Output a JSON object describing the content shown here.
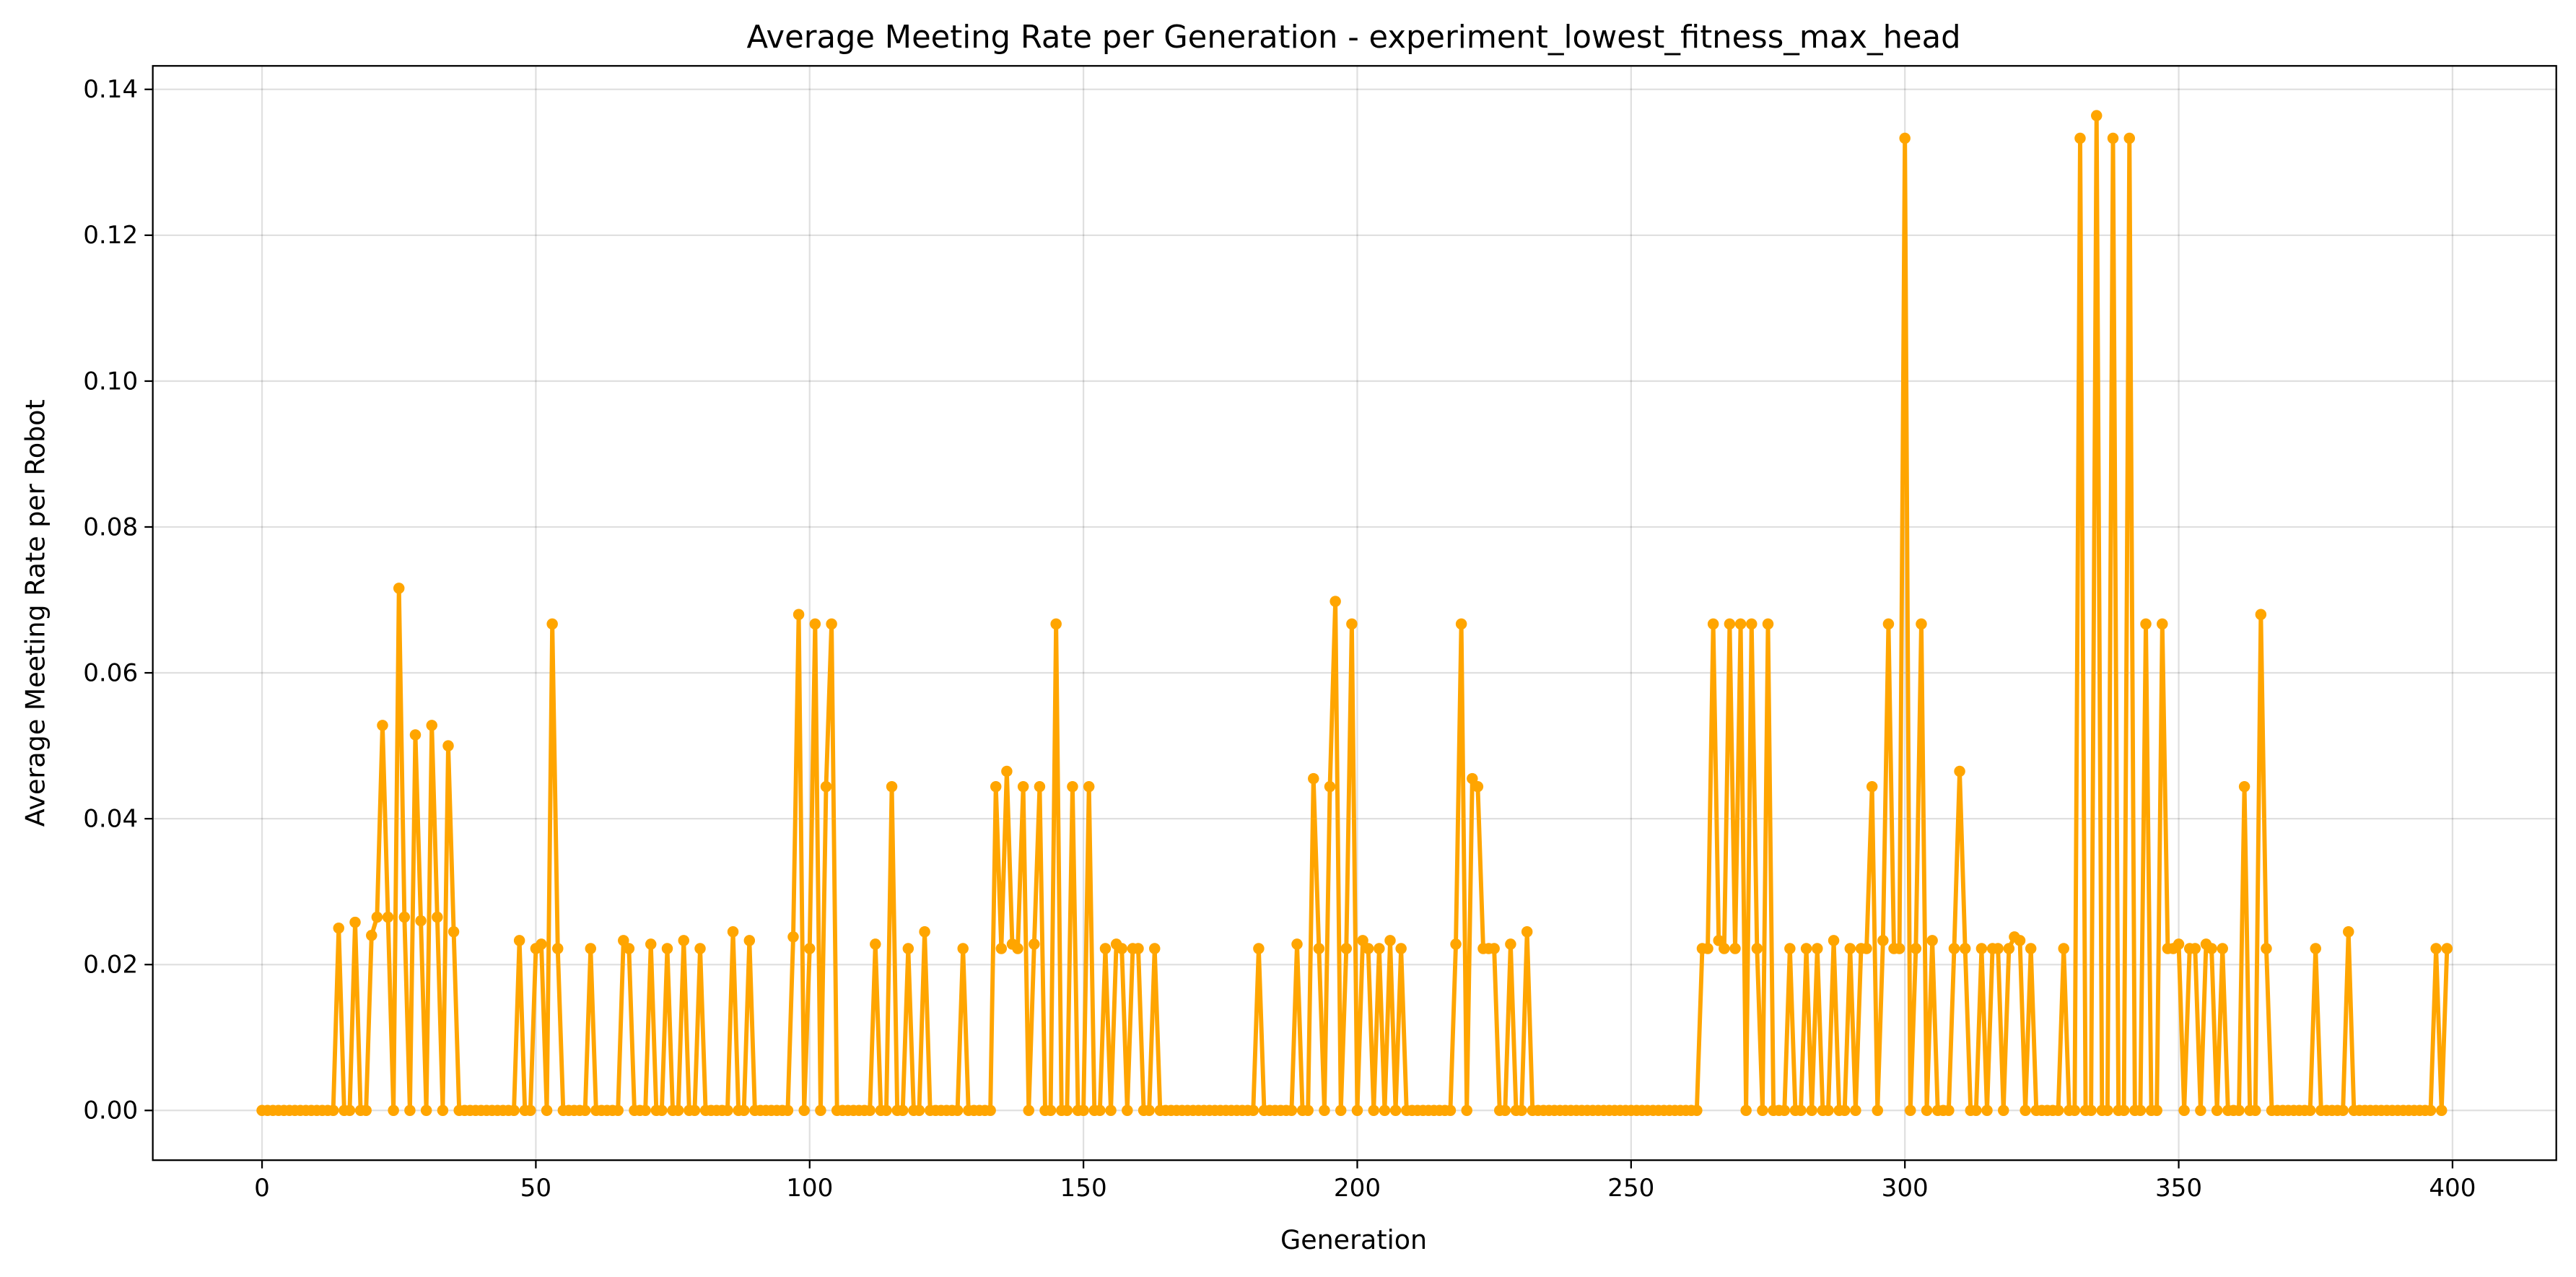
{
  "chart_data": {
    "type": "line",
    "title": "Average Meeting Rate per Generation - experiment_lowest_fitness_max_head",
    "xlabel": "Generation",
    "ylabel": "Average Meeting Rate per Robot",
    "color": "#ffa500",
    "grid": true,
    "xlim": [
      -19.95,
      418.95
    ],
    "ylim": [
      -0.00682,
      0.14322
    ],
    "xticks": [
      0,
      50,
      100,
      150,
      200,
      250,
      300,
      350,
      400
    ],
    "yticks": [
      {
        "value": 0,
        "label": "0.00"
      },
      {
        "value": 0.02,
        "label": "0.02"
      },
      {
        "value": 0.04,
        "label": "0.04"
      },
      {
        "value": 0.06,
        "label": "0.06"
      },
      {
        "value": 0.08,
        "label": "0.08"
      },
      {
        "value": 0.1,
        "label": "0.10"
      },
      {
        "value": 0.12,
        "label": "0.12"
      },
      {
        "value": 0.14,
        "label": "0.14"
      }
    ],
    "x": [
      0,
      1,
      2,
      3,
      4,
      5,
      6,
      7,
      8,
      9,
      10,
      11,
      12,
      13,
      14,
      15,
      16,
      17,
      18,
      19,
      20,
      21,
      22,
      23,
      24,
      25,
      26,
      27,
      28,
      29,
      30,
      31,
      32,
      33,
      34,
      35,
      36,
      37,
      38,
      39,
      40,
      41,
      42,
      43,
      44,
      45,
      46,
      47,
      48,
      49,
      50,
      51,
      52,
      53,
      54,
      55,
      56,
      57,
      58,
      59,
      60,
      61,
      62,
      63,
      64,
      65,
      66,
      67,
      68,
      69,
      70,
      71,
      72,
      73,
      74,
      75,
      76,
      77,
      78,
      79,
      80,
      81,
      82,
      83,
      84,
      85,
      86,
      87,
      88,
      89,
      90,
      91,
      92,
      93,
      94,
      95,
      96,
      97,
      98,
      99,
      100,
      101,
      102,
      103,
      104,
      105,
      106,
      107,
      108,
      109,
      110,
      111,
      112,
      113,
      114,
      115,
      116,
      117,
      118,
      119,
      120,
      121,
      122,
      123,
      124,
      125,
      126,
      127,
      128,
      129,
      130,
      131,
      132,
      133,
      134,
      135,
      136,
      137,
      138,
      139,
      140,
      141,
      142,
      143,
      144,
      145,
      146,
      147,
      148,
      149,
      150,
      151,
      152,
      153,
      154,
      155,
      156,
      157,
      158,
      159,
      160,
      161,
      162,
      163,
      164,
      165,
      166,
      167,
      168,
      169,
      170,
      171,
      172,
      173,
      174,
      175,
      176,
      177,
      178,
      179,
      180,
      181,
      182,
      183,
      184,
      185,
      186,
      187,
      188,
      189,
      190,
      191,
      192,
      193,
      194,
      195,
      196,
      197,
      198,
      199,
      200,
      201,
      202,
      203,
      204,
      205,
      206,
      207,
      208,
      209,
      210,
      211,
      212,
      213,
      214,
      215,
      216,
      217,
      218,
      219,
      220,
      221,
      222,
      223,
      224,
      225,
      226,
      227,
      228,
      229,
      230,
      231,
      232,
      233,
      234,
      235,
      236,
      237,
      238,
      239,
      240,
      241,
      242,
      243,
      244,
      245,
      246,
      247,
      248,
      249,
      250,
      251,
      252,
      253,
      254,
      255,
      256,
      257,
      258,
      259,
      260,
      261,
      262,
      263,
      264,
      265,
      266,
      267,
      268,
      269,
      270,
      271,
      272,
      273,
      274,
      275,
      276,
      277,
      278,
      279,
      280,
      281,
      282,
      283,
      284,
      285,
      286,
      287,
      288,
      289,
      290,
      291,
      292,
      293,
      294,
      295,
      296,
      297,
      298,
      299,
      300,
      301,
      302,
      303,
      304,
      305,
      306,
      307,
      308,
      309,
      310,
      311,
      312,
      313,
      314,
      315,
      316,
      317,
      318,
      319,
      320,
      321,
      322,
      323,
      324,
      325,
      326,
      327,
      328,
      329,
      330,
      331,
      332,
      333,
      334,
      335,
      336,
      337,
      338,
      339,
      340,
      341,
      342,
      343,
      344,
      345,
      346,
      347,
      348,
      349,
      350,
      351,
      352,
      353,
      354,
      355,
      356,
      357,
      358,
      359,
      360,
      361,
      362,
      363,
      364,
      365,
      366,
      367,
      368,
      369,
      370,
      371,
      372,
      373,
      374,
      375,
      376,
      377,
      378,
      379,
      380,
      381,
      382,
      383,
      384,
      385,
      386,
      387,
      388,
      389,
      390,
      391,
      392,
      393,
      394,
      395,
      396,
      397,
      398,
      399
    ],
    "values": [
      0,
      0,
      0,
      0,
      0,
      0,
      0,
      0,
      0,
      0,
      0,
      0,
      0,
      0,
      0.025,
      0,
      0,
      0.0258,
      0,
      0,
      0.024,
      0.0265,
      0.0528,
      0.0265,
      0,
      0.0716,
      0.0265,
      0,
      0.0515,
      0.026,
      0,
      0.0528,
      0.0265,
      0,
      0.05,
      0.0245,
      0,
      0,
      0,
      0,
      0,
      0,
      0,
      0,
      0,
      0,
      0,
      0.0233,
      0,
      0,
      0.0222,
      0.0228,
      0,
      0.0667,
      0.0222,
      0,
      0,
      0,
      0,
      0,
      0.0222,
      0,
      0,
      0,
      0,
      0,
      0.0233,
      0.0222,
      0,
      0,
      0,
      0.0228,
      0,
      0,
      0.0222,
      0,
      0,
      0.0233,
      0,
      0,
      0.0222,
      0,
      0,
      0,
      0,
      0,
      0.0245,
      0,
      0,
      0.0233,
      0,
      0,
      0,
      0,
      0,
      0,
      0,
      0.0238,
      0.068,
      0,
      0.0222,
      0.0667,
      0,
      0.0444,
      0.0667,
      0,
      0,
      0,
      0,
      0,
      0,
      0,
      0.0228,
      0,
      0,
      0.0444,
      0,
      0,
      0.0222,
      0,
      0,
      0.0245,
      0,
      0,
      0,
      0,
      0,
      0,
      0.0222,
      0,
      0,
      0,
      0,
      0,
      0.0444,
      0.0222,
      0.0465,
      0.0228,
      0.0222,
      0.0444,
      0,
      0.0228,
      0.0444,
      0,
      0,
      0.0667,
      0,
      0,
      0.0444,
      0,
      0,
      0.0444,
      0,
      0,
      0.0222,
      0,
      0.0228,
      0.0222,
      0,
      0.0222,
      0.0222,
      0,
      0,
      0.0222,
      0,
      0,
      0,
      0,
      0,
      0,
      0,
      0,
      0,
      0,
      0,
      0,
      0,
      0,
      0,
      0,
      0,
      0,
      0.0222,
      0,
      0,
      0,
      0,
      0,
      0,
      0.0228,
      0,
      0,
      0.0455,
      0.0222,
      0,
      0.0444,
      0.0698,
      0,
      0.0222,
      0.0667,
      0,
      0.0233,
      0.0222,
      0,
      0.0222,
      0,
      0.0233,
      0,
      0.0222,
      0,
      0,
      0,
      0,
      0,
      0,
      0,
      0,
      0,
      0.0228,
      0.0667,
      0,
      0.0455,
      0.0444,
      0.0222,
      0.0222,
      0.0222,
      0,
      0,
      0.0228,
      0,
      0,
      0.0245,
      0,
      0,
      0,
      0,
      0,
      0,
      0,
      0,
      0,
      0,
      0,
      0,
      0,
      0,
      0,
      0,
      0,
      0,
      0,
      0,
      0,
      0,
      0,
      0,
      0,
      0,
      0,
      0,
      0,
      0,
      0,
      0.0222,
      0.0222,
      0.0667,
      0.0233,
      0.0222,
      0.0667,
      0.0222,
      0.0667,
      0,
      0.0667,
      0.0222,
      0,
      0.0667,
      0,
      0,
      0,
      0.0222,
      0,
      0,
      0.0222,
      0,
      0.0222,
      0,
      0,
      0.0233,
      0,
      0,
      0.0222,
      0,
      0.0222,
      0.0222,
      0.0444,
      0,
      0.0233,
      0.0667,
      0.0222,
      0.0222,
      0.1333,
      0,
      0.0222,
      0.0667,
      0,
      0.0233,
      0,
      0,
      0,
      0.0222,
      0.0465,
      0.0222,
      0,
      0,
      0.0222,
      0,
      0.0222,
      0.0222,
      0,
      0.0222,
      0.0238,
      0.0233,
      0,
      0.0222,
      0,
      0,
      0,
      0,
      0,
      0.0222,
      0,
      0,
      0.1333,
      0,
      0,
      0.1364,
      0,
      0,
      0.1333,
      0,
      0,
      0.1333,
      0,
      0,
      0.0667,
      0,
      0,
      0.0667,
      0.0222,
      0.0222,
      0.0228,
      0,
      0.0222,
      0.0222,
      0,
      0.0228,
      0.0222,
      0,
      0.0222,
      0,
      0,
      0,
      0.0444,
      0,
      0,
      0.068,
      0.0222,
      0,
      0,
      0,
      0,
      0,
      0,
      0,
      0,
      0.0222,
      0,
      0,
      0,
      0,
      0,
      0.0245,
      0,
      0,
      0,
      0,
      0,
      0,
      0,
      0,
      0,
      0,
      0,
      0,
      0,
      0,
      0,
      0.0222,
      0,
      0.0222
    ]
  }
}
